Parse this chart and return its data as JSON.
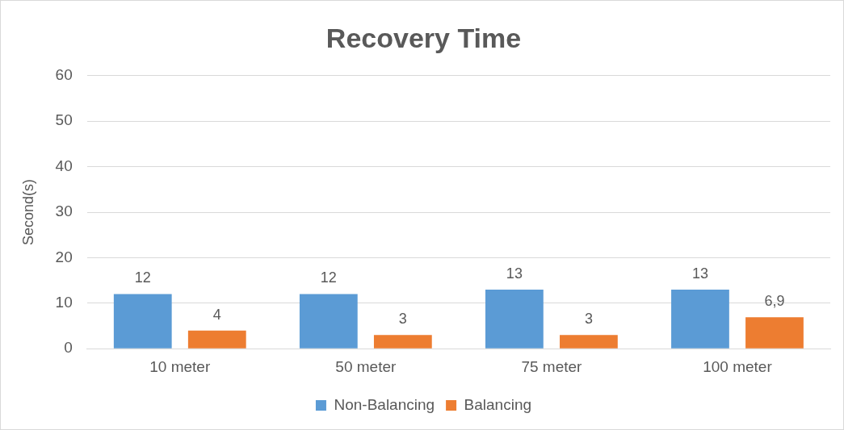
{
  "chart_data": {
    "type": "bar",
    "title": "Recovery Time",
    "ylabel": "Second(s)",
    "categories": [
      "10 meter",
      "50 meter",
      "75 meter",
      "100 meter"
    ],
    "series": [
      {
        "name": "Non-Balancing",
        "color": "#5b9bd5",
        "values": [
          12,
          12,
          13,
          13
        ],
        "value_labels": [
          "12",
          "12",
          "13",
          "13"
        ]
      },
      {
        "name": "Balancing",
        "color": "#ed7d31",
        "values": [
          4,
          3,
          3,
          6.9
        ],
        "value_labels": [
          "4",
          "3",
          "3",
          "6,9"
        ]
      }
    ],
    "ylim": [
      0,
      60
    ],
    "yticks": [
      0,
      10,
      20,
      30,
      40,
      50,
      60
    ],
    "grid": "y",
    "legend": "bottom"
  }
}
